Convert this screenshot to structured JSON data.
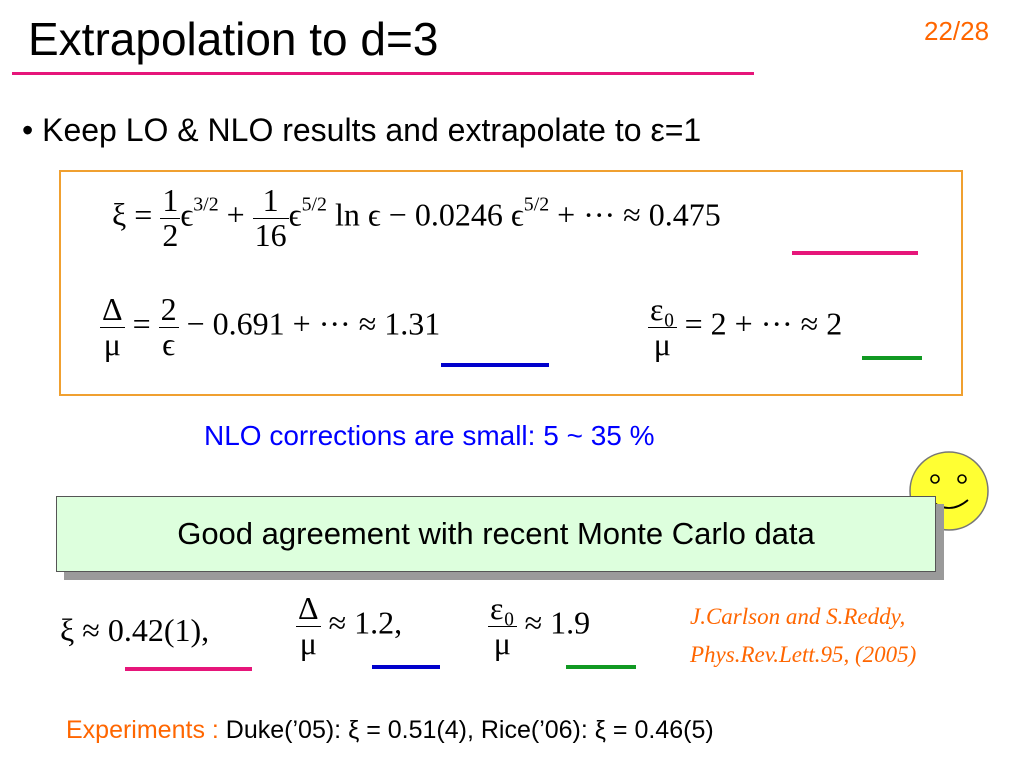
{
  "slide": {
    "title": "Extrapolation to d=3",
    "page_number": "22/28",
    "bullet": "• Keep LO & NLO results and extrapolate to ε=1"
  },
  "equations": {
    "xi": {
      "lhs": "ξ = ",
      "t1_num": "1",
      "t1_den": "2",
      "t1_base": "ϵ",
      "t1_exp": "3/2",
      "plus": " + ",
      "t2_num": "1",
      "t2_den": "16",
      "t2_base": "ϵ",
      "t2_exp": "5/2",
      "middle": " ln ϵ − 0.0246 ϵ",
      "t3_exp": "5/2",
      "tail": " + ··· ",
      "approx": "≈ 0.475"
    },
    "delta": {
      "num": "Δ",
      "den": "μ",
      "eq": " = ",
      "f_num": "2",
      "f_den": "ϵ",
      "mid": " − 0.691 + ··· ",
      "approx": "≈ 1.31"
    },
    "eps0": {
      "num": "ε₀",
      "den": "μ",
      "mid": " = 2 + ··· ",
      "approx": "≈ 2"
    }
  },
  "nlo_note": "NLO corrections are small:  5 ~ 35 %",
  "agreement_box": "Good agreement with recent Monte Carlo data",
  "monte_carlo": {
    "xi_lhs": "ξ ≈ ",
    "xi_val": "0.42(1),",
    "delta_num": "Δ",
    "delta_den": "μ",
    "delta_val": "≈ 1.2,",
    "eps_num": "ε₀",
    "eps_den": "μ",
    "eps_val": "≈ 1.9"
  },
  "reference": {
    "line1": "J.Carlson and S.Reddy,",
    "line2": "Phys.Rev.Lett.95, (2005)"
  },
  "experiments": {
    "label": "Experiments :",
    "duke": "Duke(’05): ξ = 0.51(4),",
    "rice": "Rice(’06): ξ = 0.46(5)"
  },
  "colors": {
    "title_rule": "#e6167a",
    "accent_orange": "#ff6600",
    "nlo_blue": "#0000ff",
    "box_border": "#f0a030",
    "agree_fill": "#ddffdd",
    "smiley_fill": "#ffff33"
  },
  "icons": {
    "smiley": "smiley-face-icon"
  }
}
